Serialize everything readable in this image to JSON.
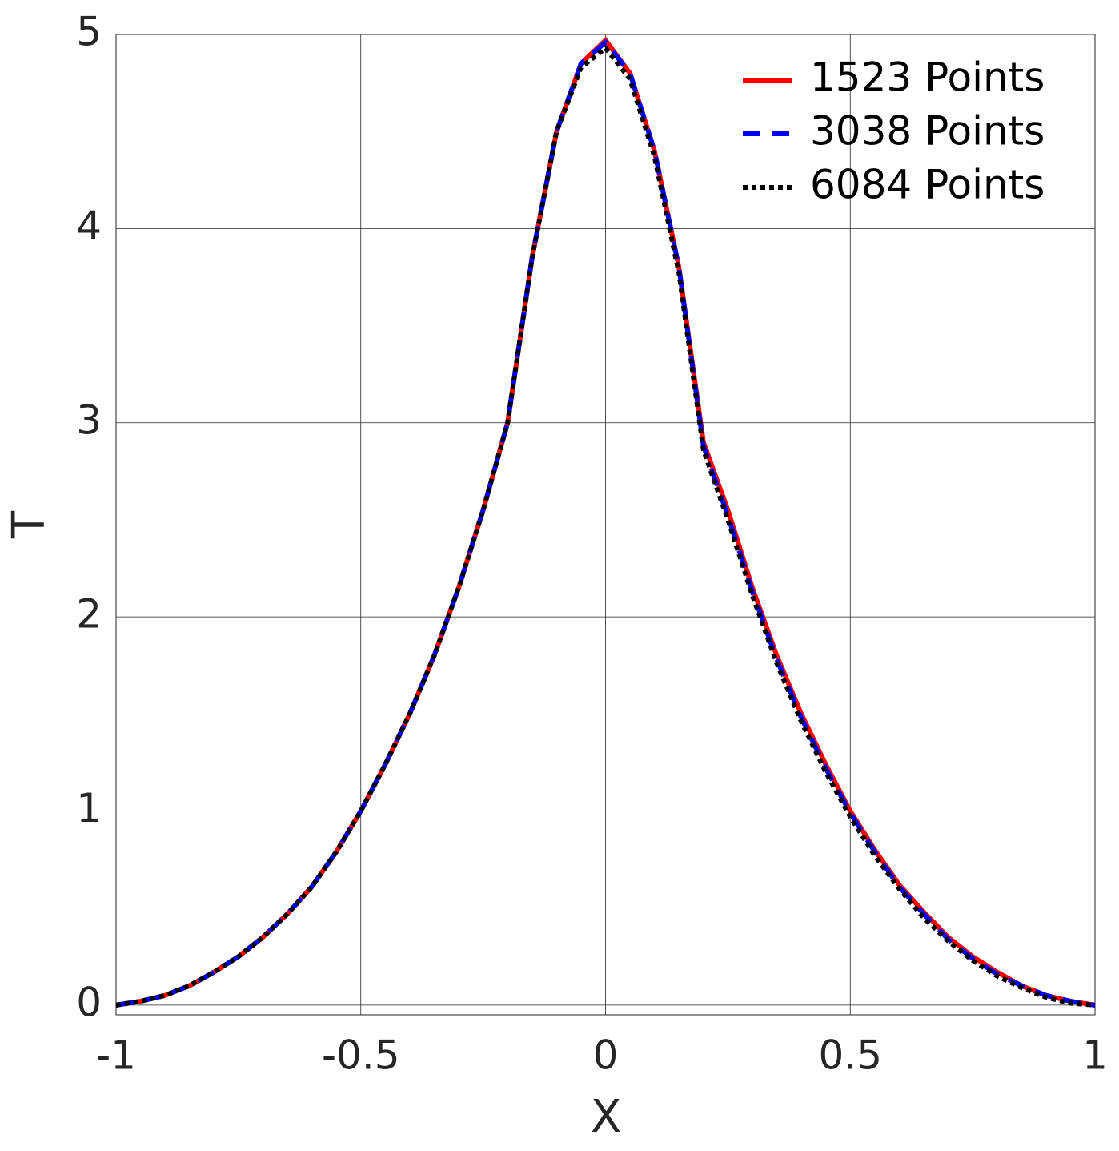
{
  "chart_data": {
    "type": "line",
    "x_label": "X",
    "y_label": "T",
    "x": [
      -1,
      -0.95,
      -0.9,
      -0.85,
      -0.8,
      -0.75,
      -0.7,
      -0.65,
      -0.6,
      -0.55,
      -0.5,
      -0.45,
      -0.4,
      -0.35,
      -0.3,
      -0.25,
      -0.2,
      -0.15,
      -0.1,
      -0.05,
      0,
      0.05,
      0.1,
      0.15,
      0.2,
      0.25,
      0.3,
      0.35,
      0.4,
      0.45,
      0.5,
      0.55,
      0.6,
      0.65,
      0.7,
      0.75,
      0.8,
      0.85,
      0.9,
      0.95,
      1
    ],
    "series": [
      {
        "name": "1523 Points",
        "color": "#ff0000",
        "dash": "solid",
        "values": [
          0,
          0.02,
          0.05,
          0.1,
          0.17,
          0.25,
          0.35,
          0.47,
          0.61,
          0.79,
          1.0,
          1.24,
          1.5,
          1.8,
          2.15,
          2.55,
          3.0,
          3.85,
          4.5,
          4.85,
          4.97,
          4.8,
          4.4,
          3.8,
          2.9,
          2.55,
          2.15,
          1.8,
          1.5,
          1.24,
          1.0,
          0.8,
          0.62,
          0.48,
          0.35,
          0.25,
          0.17,
          0.1,
          0.05,
          0.02,
          0
        ]
      },
      {
        "name": "3038 Points",
        "color": "#0000ff",
        "dash": "dashed",
        "values": [
          0,
          0.02,
          0.05,
          0.1,
          0.17,
          0.25,
          0.35,
          0.47,
          0.61,
          0.79,
          1.0,
          1.24,
          1.5,
          1.8,
          2.15,
          2.55,
          3.0,
          3.85,
          4.5,
          4.85,
          4.96,
          4.8,
          4.4,
          3.8,
          2.88,
          2.52,
          2.13,
          1.78,
          1.48,
          1.22,
          0.99,
          0.79,
          0.61,
          0.47,
          0.34,
          0.24,
          0.16,
          0.1,
          0.05,
          0.02,
          0
        ]
      },
      {
        "name": "6084 Points",
        "color": "#000000",
        "dash": "dotted",
        "values": [
          0,
          0.02,
          0.05,
          0.1,
          0.17,
          0.25,
          0.35,
          0.47,
          0.61,
          0.79,
          1.0,
          1.24,
          1.5,
          1.8,
          2.15,
          2.55,
          3.0,
          3.85,
          4.5,
          4.83,
          4.93,
          4.77,
          4.37,
          3.77,
          2.86,
          2.5,
          2.11,
          1.76,
          1.46,
          1.2,
          0.97,
          0.77,
          0.6,
          0.45,
          0.33,
          0.23,
          0.15,
          0.09,
          0.04,
          0.01,
          0
        ]
      }
    ],
    "xlim": [
      -1,
      1
    ],
    "ylim": [
      -0.05,
      5
    ],
    "xticks": [
      -1,
      -0.5,
      0,
      0.5,
      1
    ],
    "yticks": [
      0,
      1,
      2,
      3,
      4,
      5
    ],
    "grid": true,
    "legend": "upper right"
  }
}
